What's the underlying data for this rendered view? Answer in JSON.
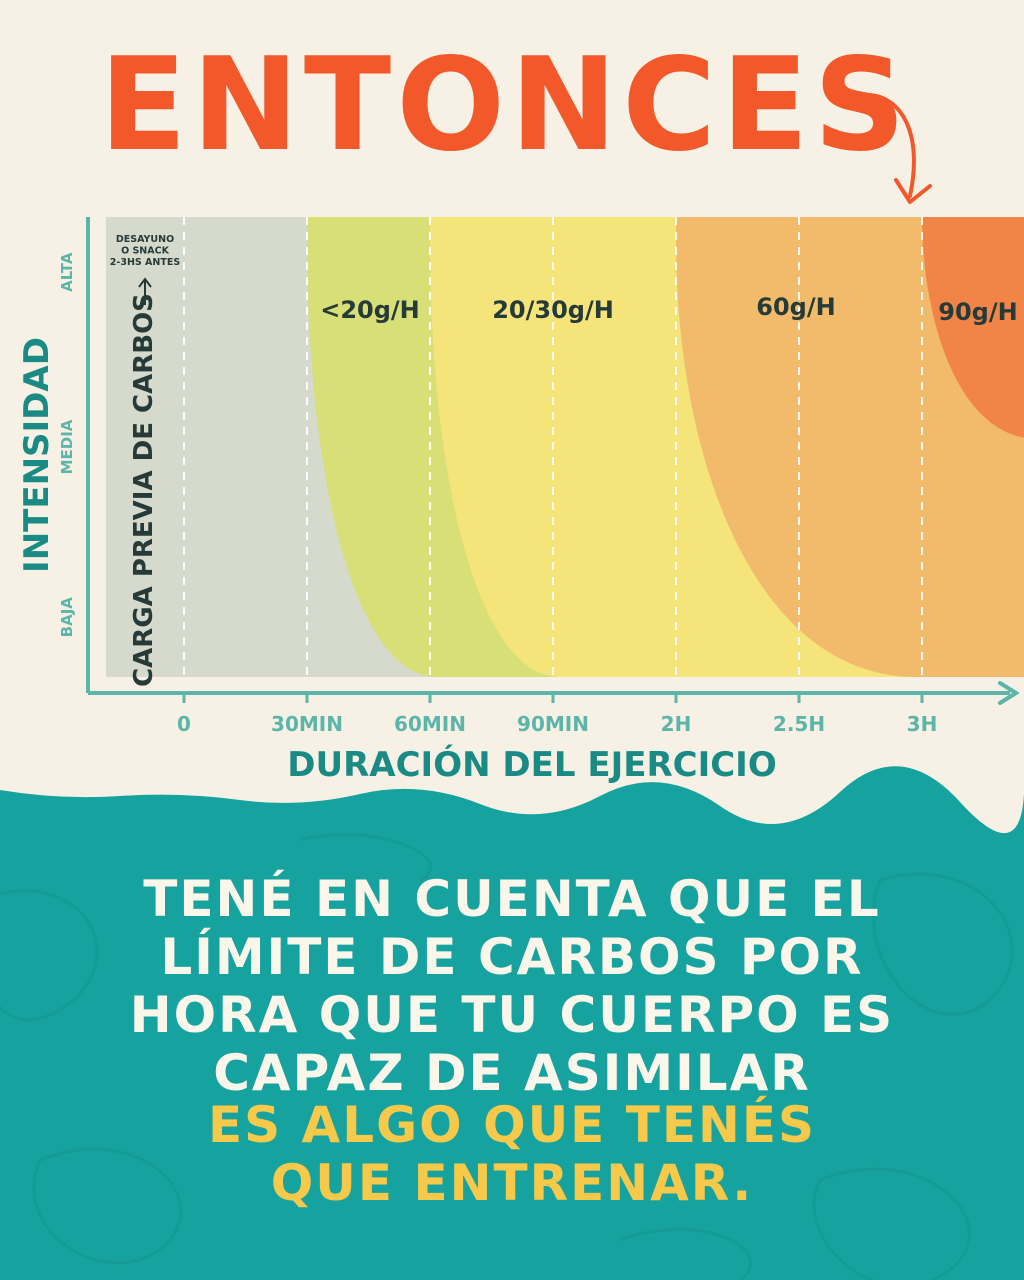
{
  "title": "ENTONCES",
  "colors": {
    "background": "#f6f1e4",
    "title": "#f2582a",
    "axis": "#5bb5a9",
    "axis_label": "#1a8a84",
    "band_prev": "#d6dacd",
    "band_lt20": "#d8df77",
    "band_20_30": "#f5e47a",
    "band_60": "#f2bb6b",
    "band_90": "#f18548",
    "teal": "#16a29e",
    "message_white": "#fbf6ea",
    "message_yellow": "#f7c94a"
  },
  "chart_data": {
    "type": "area",
    "title": "",
    "xlabel": "DURACIÓN DEL EJERCICIO",
    "ylabel": "INTENSIDAD",
    "x_ticks": [
      "0",
      "30MIN",
      "60MIN",
      "90MIN",
      "2H",
      "2.5H",
      "3H"
    ],
    "x_tick_minutes": [
      0,
      30,
      60,
      90,
      120,
      150,
      180
    ],
    "x_range_minutes": [
      -20,
      200
    ],
    "y_ticks": [
      "BAJA",
      "MEDIA",
      "ALTA"
    ],
    "y_range": [
      0,
      1
    ],
    "grid": "vertical dashed at x ticks",
    "zones": [
      {
        "label": "",
        "note": "DESAYUNO O SNACK 2-3HS ANTES",
        "vertical_label": "CARGA PREVIA DE CARBOS",
        "start_minutes": -20,
        "end_minutes": 30
      },
      {
        "label": "<20g/H",
        "start_minutes": 30,
        "end_minutes": 60
      },
      {
        "label": "20/30g/H",
        "start_minutes": 60,
        "end_minutes": 120
      },
      {
        "label": "60g/H",
        "start_minutes": 120,
        "end_minutes": 180
      },
      {
        "label": "90g/H",
        "start_minutes": 180,
        "end_minutes": 200
      }
    ],
    "note_lines": [
      "DESAYUNO",
      "O SNACK",
      "2-3HS ANTES"
    ]
  },
  "message": {
    "white_lines": [
      "TENÉ EN CUENTA QUE EL",
      "LÍMITE DE CARBOS POR",
      "HORA QUE TU CUERPO ES",
      "CAPAZ DE ASIMILAR"
    ],
    "yellow_lines": [
      "ES ALGO QUE TENÉS",
      "QUE ENTRENAR."
    ]
  }
}
